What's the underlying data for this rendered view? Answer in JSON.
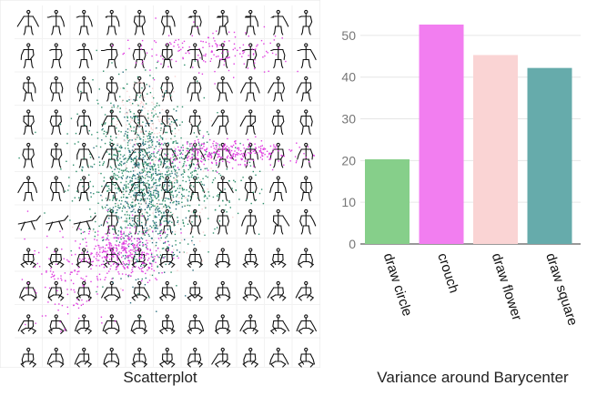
{
  "scatter_caption": "Scatterplot",
  "bar_caption": "Variance around Barycenter",
  "colors": {
    "draw circle": "#86cf8a",
    "crouch": "#f27ef0",
    "draw flower": "#fad4d4",
    "draw square": "#66abab",
    "scatter_pink": "#e03ee0",
    "scatter_green": "#2f8f6b",
    "scatter_teal": "#2a6f7f"
  },
  "chart_data": {
    "type": "bar",
    "categories": [
      "draw circle",
      "crouch",
      "draw flower",
      "draw square"
    ],
    "values": [
      20.3,
      52.6,
      45.3,
      42.2
    ],
    "ylim": [
      0,
      55
    ],
    "yticks": [
      0,
      10,
      20,
      30,
      40,
      50
    ],
    "grid": true,
    "title": "",
    "xlabel": "",
    "ylabel": ""
  }
}
